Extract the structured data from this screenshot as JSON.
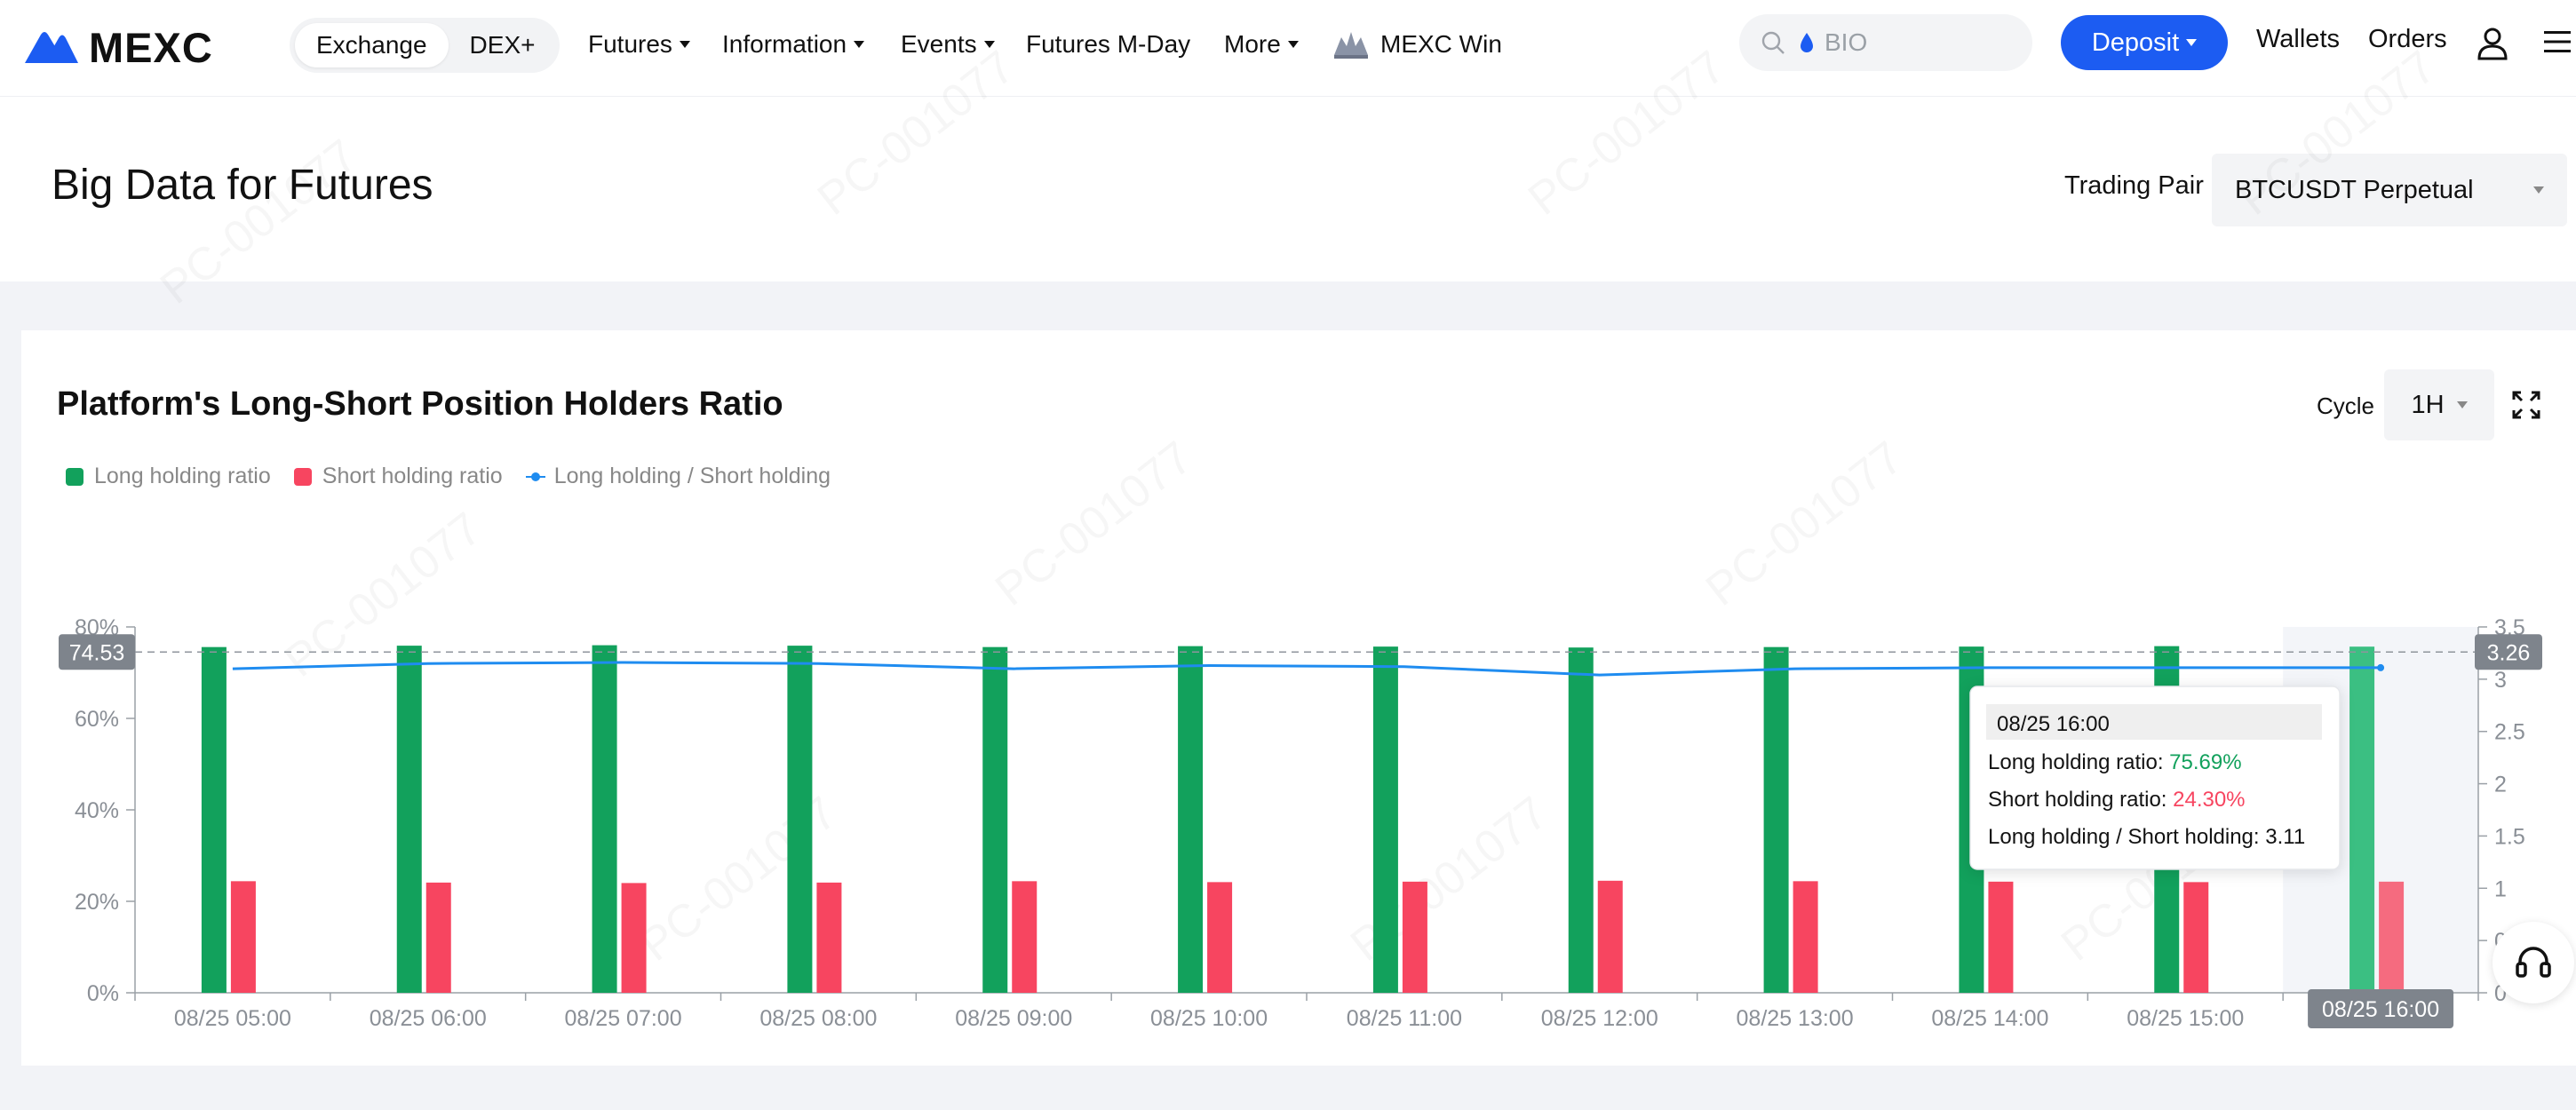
{
  "nav": {
    "brand": "MEXC",
    "exchange_tab": "Exchange",
    "dex_tab": "DEX+",
    "futures": "Futures",
    "information": "Information",
    "events": "Events",
    "futures_mday": "Futures M-Day",
    "more": "More",
    "mexc_win": "MEXC Win",
    "search_placeholder": "BIO",
    "deposit": "Deposit",
    "wallets": "Wallets",
    "orders": "Orders"
  },
  "header": {
    "title": "Big Data for Futures",
    "pair_label": "Trading Pair",
    "pair_value": "BTCUSDT Perpetual"
  },
  "card": {
    "title": "Platform's Long-Short Position Holders Ratio",
    "cycle_label": "Cycle",
    "cycle_value": "1H"
  },
  "colors": {
    "long": "#12a15c",
    "short": "#f74560",
    "ratio": "#1f8cf0",
    "accent": "#1c5cf2"
  },
  "chart_data": {
    "type": "bar",
    "legend": [
      "Long holding ratio",
      "Short holding ratio",
      "Long holding / Short holding"
    ],
    "categories": [
      "08/25 05:00",
      "08/25 06:00",
      "08/25 07:00",
      "08/25 08:00",
      "08/25 09:00",
      "08/25 10:00",
      "08/25 11:00",
      "08/25 12:00",
      "08/25 13:00",
      "08/25 14:00",
      "08/25 15:00",
      "08/25 16:00"
    ],
    "series": [
      {
        "name": "Long holding ratio",
        "axis": "left",
        "unit": "%",
        "values": [
          75.6,
          75.9,
          76.0,
          75.9,
          75.6,
          75.8,
          75.7,
          75.5,
          75.6,
          75.7,
          75.8,
          75.69
        ]
      },
      {
        "name": "Short holding ratio",
        "axis": "left",
        "unit": "%",
        "values": [
          24.4,
          24.1,
          24.0,
          24.1,
          24.4,
          24.2,
          24.3,
          24.5,
          24.4,
          24.3,
          24.2,
          24.3
        ]
      },
      {
        "name": "Long holding / Short holding",
        "axis": "right",
        "type": "line",
        "values": [
          3.1,
          3.15,
          3.16,
          3.15,
          3.1,
          3.13,
          3.12,
          3.04,
          3.1,
          3.11,
          3.11,
          3.11
        ]
      }
    ],
    "left_axis": {
      "ticks": [
        "0%",
        "20%",
        "40%",
        "60%",
        "80%"
      ],
      "min": 0,
      "max": 80
    },
    "right_axis": {
      "ticks": [
        "0",
        "0.5",
        "1",
        "1.5",
        "2",
        "2.5",
        "3",
        "3.5"
      ],
      "min": 0,
      "max": 3.5
    },
    "crosshair": {
      "left_value": "74.53",
      "right_value": "3.26",
      "x_label": "08/25 16:00"
    },
    "tooltip": {
      "title": "08/25 16:00",
      "rows": [
        {
          "label": "Long holding ratio:",
          "value": "75.69%",
          "color": "#12a15c"
        },
        {
          "label": "Short holding ratio:",
          "value": "24.30%",
          "color": "#f74560"
        },
        {
          "label": "Long holding / Short holding:",
          "value": "3.11",
          "color": "#121212"
        }
      ]
    }
  }
}
